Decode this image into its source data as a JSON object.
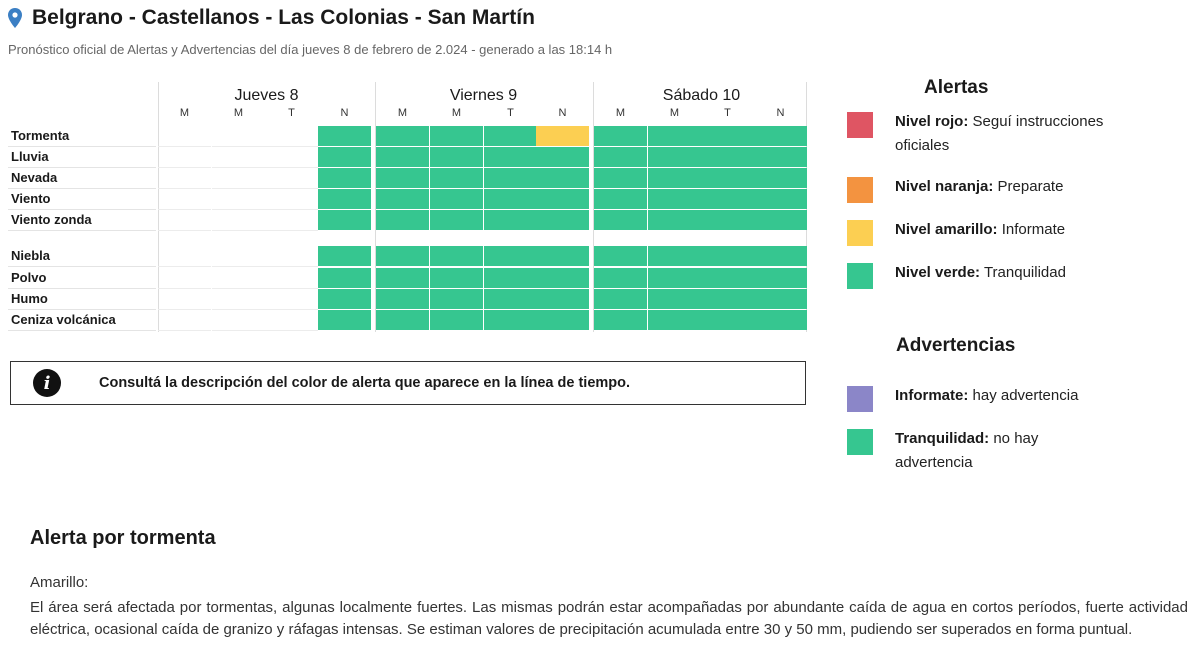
{
  "header": {
    "title": "Belgrano - Castellanos - Las Colonias - San Martín",
    "subtitle": "Pronóstico oficial de Alertas y Advertencias del día jueves 8 de febrero de 2.024 - generado a las 18:14 h"
  },
  "timeline": {
    "days": [
      {
        "name": "Jueves 8",
        "periods": [
          "M",
          "M",
          "T",
          "N"
        ]
      },
      {
        "name": "Viernes 9",
        "periods": [
          "M",
          "M",
          "T",
          "N"
        ]
      },
      {
        "name": "Sábado 10",
        "periods": [
          "M",
          "M",
          "T",
          "N"
        ]
      }
    ],
    "rows": [
      {
        "label": "Tormenta",
        "levels": [
          "none",
          "none",
          "none",
          "green",
          "green",
          "green",
          "green",
          "yellow",
          "green",
          "green",
          "green",
          "green"
        ]
      },
      {
        "label": "Lluvia",
        "levels": [
          "none",
          "none",
          "none",
          "green",
          "green",
          "green",
          "green",
          "green",
          "green",
          "green",
          "green",
          "green"
        ]
      },
      {
        "label": "Nevada",
        "levels": [
          "none",
          "none",
          "none",
          "green",
          "green",
          "green",
          "green",
          "green",
          "green",
          "green",
          "green",
          "green"
        ]
      },
      {
        "label": "Viento",
        "levels": [
          "none",
          "none",
          "none",
          "green",
          "green",
          "green",
          "green",
          "green",
          "green",
          "green",
          "green",
          "green"
        ]
      },
      {
        "label": "Viento zonda",
        "levels": [
          "none",
          "none",
          "none",
          "green",
          "green",
          "green",
          "green",
          "green",
          "green",
          "green",
          "green",
          "green"
        ]
      },
      {
        "label": "Niebla",
        "levels": [
          "none",
          "none",
          "none",
          "green",
          "green",
          "green",
          "green",
          "green",
          "green",
          "green",
          "green",
          "green"
        ]
      },
      {
        "label": "Polvo",
        "levels": [
          "none",
          "none",
          "none",
          "green",
          "green",
          "green",
          "green",
          "green",
          "green",
          "green",
          "green",
          "green"
        ]
      },
      {
        "label": "Humo",
        "levels": [
          "none",
          "none",
          "none",
          "green",
          "green",
          "green",
          "green",
          "green",
          "green",
          "green",
          "green",
          "green"
        ]
      },
      {
        "label": "Ceniza volcánica",
        "levels": [
          "none",
          "none",
          "none",
          "green",
          "green",
          "green",
          "green",
          "green",
          "green",
          "green",
          "green",
          "green"
        ]
      }
    ]
  },
  "info": {
    "icon": "info-icon",
    "text": "Consultá la descripción del color de alerta que aparece en la línea de tiempo."
  },
  "legend": {
    "alertas_title": "Alertas",
    "alertas": [
      {
        "color": "#df5563",
        "bold": "Nivel rojo:",
        "text": " Seguí instrucciones oficiales"
      },
      {
        "color": "#f39340",
        "bold": "Nivel naranja:",
        "text": " Preparate"
      },
      {
        "color": "#fccf52",
        "bold": "Nivel amarillo:",
        "text": " Informate"
      },
      {
        "color": "#36c690",
        "bold": "Nivel verde:",
        "text": " Tranquilidad"
      }
    ],
    "advertencias_title": "Advertencias",
    "advertencias": [
      {
        "color": "#8b86c8",
        "bold": "Informate:",
        "text": " hay advertencia"
      },
      {
        "color": "#36c690",
        "bold": "Tranquilidad:",
        "text": " no hay advertencia"
      }
    ]
  },
  "section": {
    "title": "Alerta por tormenta",
    "level": "Amarillo:",
    "text": "El área será afectada por tormentas, algunas localmente fuertes. Las mismas podrán estar acompañadas por abundante caída de agua en cortos períodos, fuerte actividad eléctrica, ocasional caída de granizo y ráfagas intensas. Se estiman valores de precipitación acumulada entre 30 y 50 mm, pudiendo ser superados en forma puntual."
  },
  "colors": {
    "green": "#36c690",
    "yellow": "#fccf52"
  }
}
